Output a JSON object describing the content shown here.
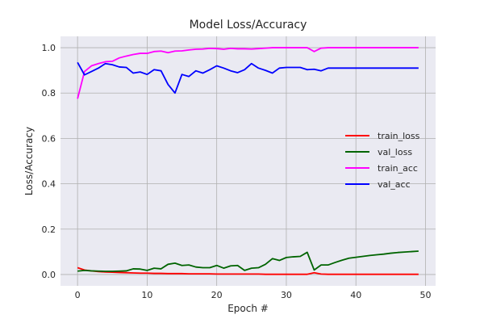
{
  "chart_data": {
    "type": "line",
    "title": "Model Loss/Accuracy",
    "xlabel": "Epoch #",
    "ylabel": "Loss/Accuracy",
    "xlim": [
      -2.45,
      51.45
    ],
    "ylim": [
      -0.05,
      1.05
    ],
    "xticks": [
      0,
      10,
      20,
      30,
      40,
      50
    ],
    "yticks": [
      0.0,
      0.2,
      0.4,
      0.6,
      0.8,
      1.0
    ],
    "grid": true,
    "legend_position": "center-right",
    "colors": {
      "background": "#eaeaf2",
      "grid": "#b0b0b0"
    },
    "x": [
      0,
      1,
      2,
      3,
      4,
      5,
      6,
      7,
      8,
      9,
      10,
      11,
      12,
      13,
      14,
      15,
      16,
      17,
      18,
      19,
      20,
      21,
      22,
      23,
      24,
      25,
      26,
      27,
      28,
      29,
      30,
      31,
      32,
      33,
      34,
      35,
      36,
      37,
      38,
      39,
      40,
      41,
      42,
      43,
      44,
      45,
      46,
      47,
      48,
      49
    ],
    "series": [
      {
        "name": "train_loss",
        "color": "#ff0000",
        "values": [
          0.03,
          0.02,
          0.016,
          0.013,
          0.011,
          0.01,
          0.009,
          0.008,
          0.007,
          0.006,
          0.006,
          0.005,
          0.005,
          0.004,
          0.004,
          0.004,
          0.003,
          0.003,
          0.003,
          0.003,
          0.002,
          0.002,
          0.002,
          0.002,
          0.002,
          0.002,
          0.002,
          0.001,
          0.001,
          0.001,
          0.001,
          0.001,
          0.001,
          0.001,
          0.008,
          0.002,
          0.001,
          0.001,
          0.001,
          0.001,
          0.001,
          0.001,
          0.001,
          0.001,
          0.001,
          0.001,
          0.001,
          0.001,
          0.001,
          0.001
        ]
      },
      {
        "name": "val_loss",
        "color": "#006400",
        "values": [
          0.015,
          0.018,
          0.016,
          0.015,
          0.014,
          0.014,
          0.015,
          0.016,
          0.025,
          0.024,
          0.018,
          0.028,
          0.025,
          0.045,
          0.05,
          0.04,
          0.042,
          0.033,
          0.03,
          0.03,
          0.04,
          0.028,
          0.038,
          0.04,
          0.018,
          0.028,
          0.03,
          0.045,
          0.07,
          0.062,
          0.075,
          0.078,
          0.08,
          0.098,
          0.02,
          0.042,
          0.042,
          0.053,
          0.063,
          0.072,
          0.076,
          0.08,
          0.084,
          0.087,
          0.09,
          0.094,
          0.097,
          0.099,
          0.101,
          0.103
        ]
      },
      {
        "name": "train_acc",
        "color": "#ff00ff",
        "values": [
          0.775,
          0.895,
          0.92,
          0.93,
          0.938,
          0.94,
          0.955,
          0.963,
          0.97,
          0.975,
          0.975,
          0.983,
          0.985,
          0.978,
          0.985,
          0.986,
          0.99,
          0.993,
          0.994,
          0.997,
          0.996,
          0.993,
          0.997,
          0.995,
          0.995,
          0.994,
          0.996,
          0.998,
          1.0,
          1.0,
          1.0,
          1.0,
          1.0,
          1.0,
          0.983,
          0.998,
          1.0,
          1.0,
          1.0,
          1.0,
          1.0,
          1.0,
          1.0,
          1.0,
          1.0,
          1.0,
          1.0,
          1.0,
          1.0,
          1.0
        ]
      },
      {
        "name": "val_acc",
        "color": "#0000ff",
        "values": [
          0.935,
          0.88,
          0.895,
          0.91,
          0.93,
          0.925,
          0.915,
          0.913,
          0.888,
          0.893,
          0.882,
          0.903,
          0.898,
          0.838,
          0.8,
          0.882,
          0.873,
          0.898,
          0.888,
          0.903,
          0.92,
          0.91,
          0.898,
          0.89,
          0.903,
          0.93,
          0.91,
          0.9,
          0.888,
          0.91,
          0.913,
          0.913,
          0.913,
          0.903,
          0.905,
          0.898,
          0.91,
          0.91,
          0.91,
          0.91,
          0.91,
          0.91,
          0.91,
          0.91,
          0.91,
          0.91,
          0.91,
          0.91,
          0.91,
          0.91
        ]
      }
    ]
  }
}
